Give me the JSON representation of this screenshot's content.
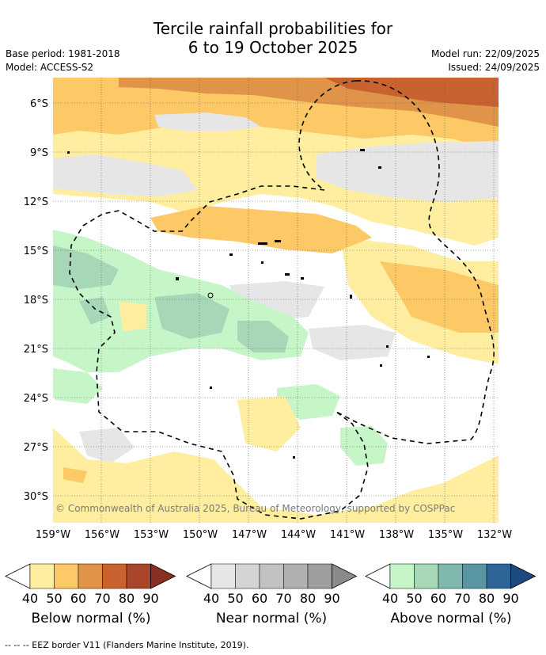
{
  "title": {
    "line1": "Tercile rainfall probabilities for",
    "line2": "6 to 19 October 2025"
  },
  "meta": {
    "base_period": "Base period: 1981-2018",
    "model": "Model: ACCESS-S2",
    "model_run": "Model run: 22/09/2025",
    "issued": "Issued: 24/09/2025"
  },
  "map": {
    "lat_labels": [
      "6°S",
      "9°S",
      "12°S",
      "15°S",
      "18°S",
      "21°S",
      "24°S",
      "27°S",
      "30°S"
    ],
    "lon_labels": [
      "159°W",
      "156°W",
      "153°W",
      "150°W",
      "147°W",
      "144°W",
      "141°W",
      "138°W",
      "135°W",
      "132°W"
    ],
    "copyright": "© Commonwealth of Australia 2025, Bureau of Meteorology, supported by COSPPac"
  },
  "colorbars": [
    {
      "title": "Below normal (%)",
      "ticks": [
        "40",
        "50",
        "60",
        "70",
        "80",
        "90"
      ],
      "colors": [
        "#ffeea0",
        "#fdc866",
        "#e0944a",
        "#c8622e",
        "#a8452a",
        "#8a3022"
      ]
    },
    {
      "title": "Near normal (%)",
      "ticks": [
        "40",
        "50",
        "60",
        "70",
        "80",
        "90"
      ],
      "colors": [
        "#e6e6e6",
        "#d4d4d4",
        "#c2c2c2",
        "#b0b0b0",
        "#9e9e9e",
        "#8a8a8a"
      ]
    },
    {
      "title": "Above normal (%)",
      "ticks": [
        "40",
        "50",
        "60",
        "70",
        "80",
        "90"
      ],
      "colors": [
        "#c6f5c8",
        "#a6d8b8",
        "#7fb8ae",
        "#5a95a4",
        "#2f6596",
        "#1d4a7e"
      ]
    }
  ],
  "footer": "--  --  -- EEZ border V11 (Flanders Marine Institute, 2019)."
}
